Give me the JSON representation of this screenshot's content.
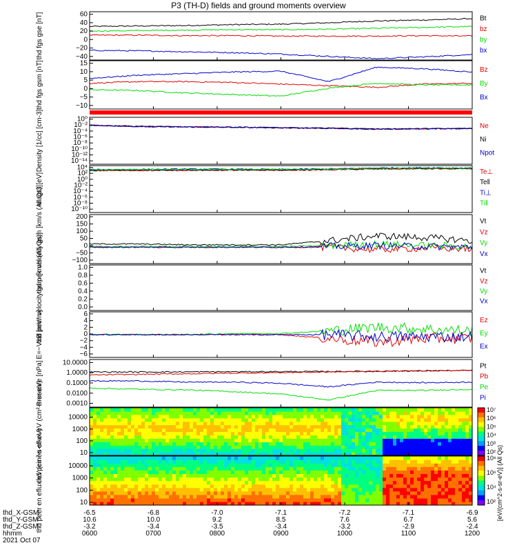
{
  "title": "P3 (TH-D) fields and ground moments overview",
  "date": "2021 Oct 07",
  "colors": {
    "black": "#000000",
    "red": "#e00000",
    "green": "#00dd00",
    "blue": "#0000cc"
  },
  "orbit": {
    "rows": [
      {
        "label": "thd_X-GSM",
        "values": [
          "-6.5",
          "-6.8",
          "-7.0",
          "-7.1",
          "-7.2",
          "-7.1",
          "-6.9"
        ]
      },
      {
        "label": "thd_Y-GSM",
        "values": [
          "10.6",
          "10.0",
          "9.2",
          "8.5",
          "7.6",
          "6.7",
          "5.6"
        ]
      },
      {
        "label": "thd_Z-GSM",
        "values": [
          "-3.2",
          "-3.4",
          "-3.5",
          "-3.4",
          "-3.2",
          "-2.9",
          "-2.4"
        ]
      },
      {
        "label": "hhmm",
        "values": [
          "0600",
          "0700",
          "0800",
          "0900",
          "1000",
          "1100",
          "1200"
        ]
      }
    ]
  },
  "colorbars": [
    {
      "ticks": [
        "10⁷",
        "10⁶",
        "10⁵",
        "10⁴",
        "10³",
        "10²"
      ],
      "label": "[eV/(cm^2-s-sr-eV)] (All Qs)"
    },
    {
      "ticks": [
        "10⁸",
        "10⁶",
        "10⁴",
        "10²"
      ],
      "label": "[eV/(cm^2-s-sr-eV)] (All Qs)"
    }
  ],
  "chart_data": [
    {
      "type": "line",
      "panel": "fgs-gse",
      "ylabel": "thd fgs gse [nT]",
      "ylim": [
        -40,
        65
      ],
      "yticks": [
        "60",
        "40",
        "20",
        "0",
        "−20",
        "−40"
      ],
      "series": [
        {
          "name": "Bt",
          "color": "black",
          "values": [
            33,
            34,
            35,
            37,
            38,
            41,
            45,
            47,
            50
          ]
        },
        {
          "name": "bz",
          "color": "red",
          "values": [
            14,
            14,
            13,
            13,
            12,
            12,
            12,
            13,
            12
          ]
        },
        {
          "name": "by",
          "color": "green",
          "values": [
            23,
            24,
            25,
            26,
            26,
            27,
            29,
            31,
            33
          ]
        },
        {
          "name": "bx",
          "color": "blue",
          "values": [
            -19,
            -20,
            -22,
            -24,
            -27,
            -32,
            -37,
            -33,
            -28
          ]
        }
      ]
    },
    {
      "type": "line",
      "panel": "fgs-gsm",
      "ylabel": "thd fgs gsm [nT]",
      "ylim": [
        -15,
        15
      ],
      "yticks": [
        "15",
        "10",
        "5",
        "0",
        "−5",
        "−10"
      ],
      "series": [
        {
          "name": "Bz",
          "color": "red",
          "values": [
            1,
            2,
            2,
            1.5,
            0.5,
            -0.5,
            -1.5,
            0.5,
            1
          ]
        },
        {
          "name": "By",
          "color": "green",
          "values": [
            -3,
            -3.5,
            -5,
            -6,
            -7,
            -2,
            1,
            0,
            0
          ]
        },
        {
          "name": "Bx",
          "color": "blue",
          "values": [
            4,
            6,
            7,
            8,
            8.5,
            2,
            11,
            10,
            8
          ]
        }
      ]
    },
    {
      "type": "line",
      "panel": "density",
      "ylabel": "Density [1/cc] [cm-3]",
      "ylim": [
        -15,
        3
      ],
      "scale": "log",
      "yticks": [
        "10⁰",
        "10⁻²",
        "10⁻⁴",
        "10⁻⁶",
        "10⁻⁸",
        "10⁻¹⁰",
        "10⁻¹²",
        "10⁻¹⁴"
      ],
      "series": [
        {
          "name": "Ne",
          "color": "red",
          "values": [
            0,
            -0.5,
            -0.7,
            -0.8,
            -1,
            -1.2,
            -1.5,
            -1.4,
            -1.3
          ]
        },
        {
          "name": "Ni",
          "color": "black",
          "values": [
            0,
            -0.5,
            -0.7,
            -0.8,
            -1,
            -1.2,
            -1.5,
            -1.4,
            -1.3
          ]
        },
        {
          "name": "Npot",
          "color": "blue",
          "values": [
            0,
            -0.5,
            -0.7,
            -0.8,
            -1,
            -1.2,
            -1.5,
            -1.4,
            -1.3
          ]
        }
      ]
    },
    {
      "type": "line",
      "panel": "temperature",
      "ylabel": "magt3 [eV]",
      "ylim": [
        -15,
        5
      ],
      "scale": "log",
      "yticks": [
        "10⁴",
        "10²",
        "10⁰",
        "10⁻²",
        "10⁻⁴",
        "10⁻⁶",
        "10⁻⁸",
        "10⁻¹⁰"
      ],
      "series": [
        {
          "name": "Te⊥",
          "color": "red",
          "values": [
            2.8,
            2.9,
            3,
            3,
            3,
            3.2,
            3.5,
            3.6,
            3.6
          ]
        },
        {
          "name": "Te‖",
          "color": "black",
          "values": [
            2.9,
            3,
            3.1,
            3.1,
            3.1,
            3.3,
            3.7,
            3.7,
            3.7
          ]
        },
        {
          "name": "Ti⊥",
          "color": "blue",
          "values": [
            3.3,
            3.4,
            3.5,
            3.5,
            3.4,
            3.6,
            4,
            4.1,
            4
          ]
        },
        {
          "name": "Ti‖",
          "color": "green",
          "values": [
            3.2,
            3.3,
            3.4,
            3.4,
            3.4,
            3.5,
            3.9,
            4,
            3.9
          ]
        }
      ]
    },
    {
      "type": "line",
      "panel": "peir-velocity",
      "ylabel": "thd peir velocity gsm [km/s (All Qs)]",
      "ylim": [
        -100,
        200
      ],
      "yticks": [
        "200",
        "150",
        "100",
        "50",
        "0",
        "−50",
        "−100"
      ],
      "series": [
        {
          "name": "Vt",
          "color": "black",
          "values": [
            20,
            20,
            15,
            15,
            15,
            40,
            70,
            60,
            40
          ]
        },
        {
          "name": "Vz",
          "color": "red",
          "values": [
            0,
            0,
            0,
            0,
            0,
            0,
            -15,
            -5,
            -10
          ]
        },
        {
          "name": "Vy",
          "color": "green",
          "values": [
            5,
            5,
            5,
            5,
            5,
            10,
            20,
            10,
            5
          ]
        },
        {
          "name": "Vx",
          "color": "blue",
          "values": [
            0,
            0,
            0,
            0,
            0,
            5,
            10,
            5,
            0
          ]
        }
      ]
    },
    {
      "type": "line",
      "panel": "peer-velocity",
      "ylabel": "thd peer velocity gsm [km/s (All Qs)]",
      "ylim": [
        0,
        1
      ],
      "yticks": [
        "1.0",
        "0.8",
        "0.6",
        "0.4",
        "0.2",
        "0.0"
      ],
      "series": [
        {
          "name": "Vt",
          "color": "black",
          "values": []
        },
        {
          "name": "Vz",
          "color": "red",
          "values": []
        },
        {
          "name": "Vy",
          "color": "green",
          "values": []
        },
        {
          "name": "Vx",
          "color": "blue",
          "values": []
        }
      ]
    },
    {
      "type": "line",
      "panel": "efield",
      "ylabel": "E=−VxB [mV/m]",
      "ylim": [
        -6,
        6
      ],
      "yticks": [
        "6",
        "4",
        "2",
        "0",
        "−2",
        "−4",
        "−6"
      ],
      "series": [
        {
          "name": "Ez",
          "color": "red",
          "values": [
            0,
            0,
            0,
            0,
            0,
            -1,
            -2,
            -1,
            -1
          ]
        },
        {
          "name": "Ey",
          "color": "green",
          "values": [
            0,
            0,
            0,
            0.3,
            0.3,
            1,
            2,
            1.5,
            1
          ]
        },
        {
          "name": "Ex",
          "color": "blue",
          "values": [
            0,
            0,
            0,
            0,
            0,
            0,
            -0.5,
            -0.5,
            -0.5
          ]
        }
      ]
    },
    {
      "type": "line",
      "panel": "pressure",
      "ylabel": "Pressure [nPa]",
      "ylim": [
        -3,
        1
      ],
      "scale": "log",
      "yticks": [
        "10.0000",
        "1.0000",
        "0.1000",
        "0.0100",
        "0.0010"
      ],
      "series": [
        {
          "name": "Pt",
          "color": "black",
          "values": [
            -0.05,
            -0.05,
            -0.04,
            -0.03,
            -0.02,
            -0.01,
            0.02,
            0.05,
            0.08
          ]
        },
        {
          "name": "Pb",
          "color": "red",
          "values": [
            -0.3,
            -0.25,
            -0.2,
            -0.15,
            -0.1,
            -0.05,
            0,
            0.05,
            0.08
          ]
        },
        {
          "name": "Pe",
          "color": "green",
          "values": [
            -1.4,
            -1.5,
            -1.55,
            -1.7,
            -1.9,
            -2.4,
            -1.6,
            -1.6,
            -1.5
          ]
        },
        {
          "name": "Pi",
          "color": "blue",
          "values": [
            -0.8,
            -0.8,
            -0.9,
            -0.9,
            -1.0,
            -1.3,
            -0.9,
            -0.95,
            -0.9
          ]
        }
      ]
    },
    {
      "type": "heatmap",
      "panel": "peir-eflux",
      "ylabel": "thd peir en eflux eV (cm²-s-sr-eV)",
      "ylim": [
        1,
        4
      ],
      "scale": "log",
      "yticks": [
        "10000",
        "1000",
        "100",
        "10"
      ]
    },
    {
      "type": "heatmap",
      "panel": "peer-eflux",
      "ylabel": "thd peer en eflux eV (cm²-s-sr-eV)",
      "ylim": [
        1,
        4.2
      ],
      "scale": "log",
      "yticks": [
        "10000",
        "1000",
        "100",
        "10"
      ]
    }
  ],
  "axis": {
    "xlim": [
      6,
      12
    ]
  }
}
